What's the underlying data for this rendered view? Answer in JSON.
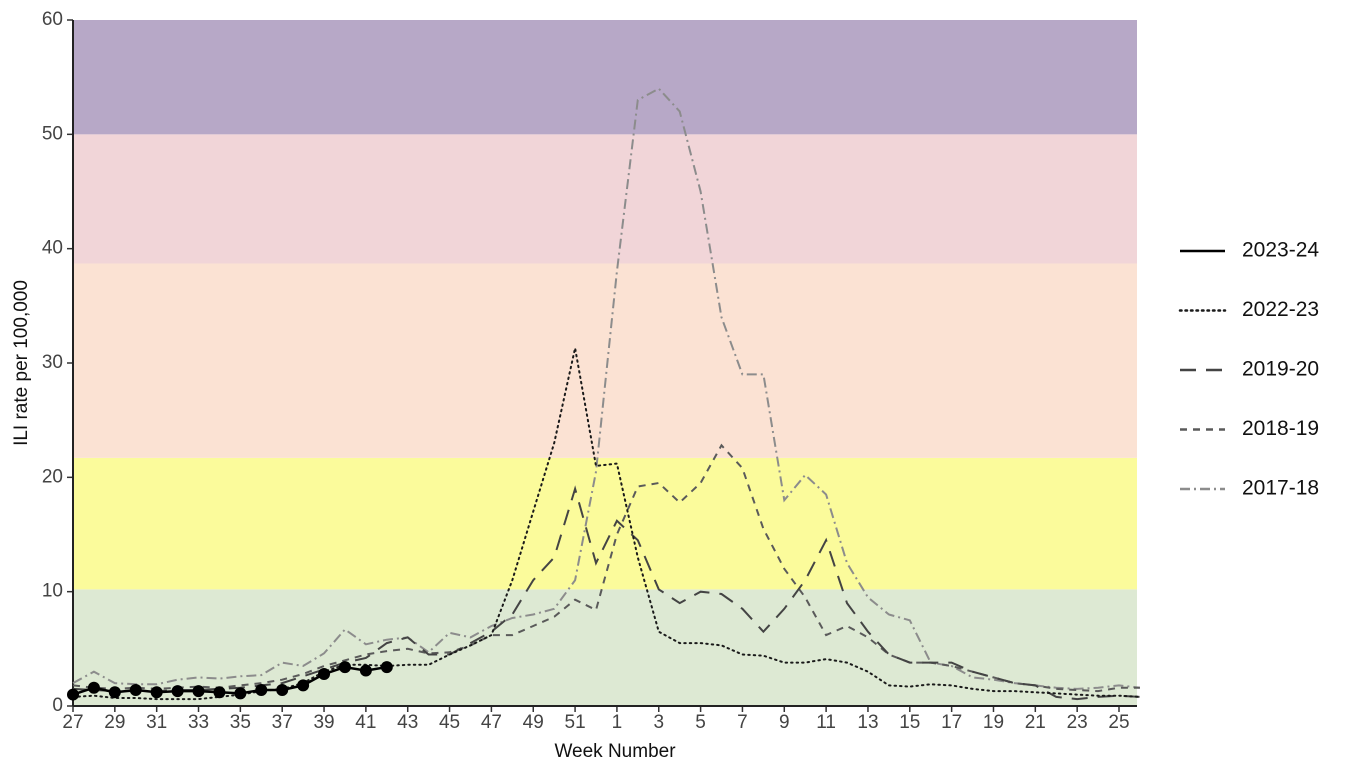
{
  "chart_data": {
    "type": "line",
    "y_label": "ILI rate per 100,000",
    "x_label": "Week Number",
    "categories": [
      "27",
      null,
      "29",
      null,
      "31",
      null,
      "33",
      null,
      "35",
      null,
      "37",
      null,
      "39",
      null,
      "41",
      null,
      "43",
      null,
      "45",
      null,
      "47",
      null,
      "49",
      null,
      "51",
      null,
      "1",
      null,
      "3",
      null,
      "5",
      null,
      "7",
      null,
      "9",
      null,
      "11",
      null,
      "13",
      null,
      "15",
      null,
      "17",
      null,
      "19",
      null,
      "21",
      null,
      "23",
      null,
      "25",
      null
    ],
    "ylim": [
      0,
      60
    ],
    "yticks": [
      0,
      10,
      20,
      30,
      40,
      50,
      60
    ],
    "bands": [
      {
        "from": 0,
        "to": 10.2,
        "color": "#dde9d3"
      },
      {
        "from": 10.2,
        "to": 21.7,
        "color": "#fbfb9b"
      },
      {
        "from": 21.7,
        "to": 38.7,
        "color": "#fbe2d3"
      },
      {
        "from": 38.7,
        "to": 50,
        "color": "#f1d5d8"
      },
      {
        "from": 50,
        "to": 60,
        "color": "#b7a8c7"
      }
    ],
    "series": [
      {
        "name": "2023-24",
        "color": "#000000",
        "dash": "solid",
        "markers": true,
        "values": [
          1.0,
          1.6,
          1.2,
          1.4,
          1.2,
          1.3,
          1.3,
          1.2,
          1.1,
          1.4,
          1.4,
          1.8,
          2.8,
          3.4,
          3.1,
          3.4,
          null,
          null,
          null,
          null,
          null,
          null,
          null,
          null,
          null,
          null,
          null,
          null,
          null,
          null,
          null,
          null,
          null,
          null,
          null,
          null,
          null,
          null,
          null,
          null,
          null,
          null,
          null,
          null,
          null,
          null,
          null,
          null,
          null,
          null,
          null,
          null
        ]
      },
      {
        "name": "2022-23",
        "color": "#1a1a1a",
        "dash": "dotted",
        "markers": false,
        "values": [
          0.8,
          0.9,
          0.7,
          0.7,
          0.6,
          0.6,
          0.6,
          0.8,
          1.0,
          1.3,
          1.5,
          2.0,
          3.0,
          3.6,
          3.6,
          3.5,
          3.6,
          3.6,
          4.5,
          5.3,
          6.2,
          11,
          17,
          23,
          31.3,
          21,
          21.2,
          13,
          6.5,
          5.5,
          5.5,
          5.3,
          4.5,
          4.4,
          3.8,
          3.8,
          4.1,
          3.8,
          3.0,
          1.8,
          1.7,
          1.9,
          1.8,
          1.5,
          1.3,
          1.3,
          1.2,
          1.1,
          1.0,
          0.9,
          0.9,
          0.8
        ]
      },
      {
        "name": "2019-20",
        "color": "#444444",
        "dash": "longdash",
        "markers": false,
        "values": [
          1.5,
          1.4,
          1.3,
          1.3,
          1.3,
          1.4,
          1.4,
          1.5,
          1.6,
          1.8,
          2.0,
          2.6,
          3.2,
          3.8,
          4.2,
          5.5,
          6.0,
          4.5,
          4.5,
          5.5,
          6.5,
          8,
          11,
          13,
          19,
          12.5,
          16.2,
          14.5,
          10.2,
          9.0,
          10,
          9.8,
          8.5,
          6.5,
          8.5,
          11,
          14.5,
          9,
          6.5,
          4.5,
          3.8,
          3.8,
          3.8,
          3.0,
          2.5,
          2.0,
          1.8,
          0.8,
          0.6,
          0.8,
          0.9,
          0.8
        ]
      },
      {
        "name": "2018-19",
        "color": "#5a5a5a",
        "dash": "dashed",
        "markers": false,
        "values": [
          1.8,
          1.6,
          1.5,
          1.6,
          1.5,
          1.6,
          1.7,
          1.6,
          1.8,
          2.0,
          2.3,
          2.8,
          3.5,
          4.0,
          4.5,
          4.8,
          5.0,
          4.6,
          4.7,
          5.3,
          6.2,
          6.2,
          7.0,
          7.8,
          9.3,
          8.4,
          15,
          19.2,
          19.5,
          17.8,
          19.5,
          22.8,
          20.8,
          15.5,
          12,
          9.5,
          6.2,
          7,
          6,
          4.5,
          3.8,
          3.8,
          3.5,
          3.0,
          2.5,
          2.0,
          1.8,
          1.5,
          1.4,
          1.3,
          1.6,
          1.6
        ]
      },
      {
        "name": "2017-18",
        "color": "#8c8c8c",
        "dash": "dashdot",
        "markers": false,
        "values": [
          2.0,
          3.0,
          2.0,
          1.9,
          1.9,
          2.3,
          2.5,
          2.4,
          2.6,
          2.7,
          3.8,
          3.5,
          4.6,
          6.7,
          5.4,
          5.8,
          6.0,
          4.7,
          6.4,
          6.0,
          7.0,
          7.7,
          8.0,
          8.5,
          11,
          20.5,
          38,
          53,
          54,
          52,
          45,
          34,
          29,
          29,
          18,
          20.2,
          18.5,
          12.5,
          9.5,
          8,
          7.5,
          3.8,
          3.5,
          2.5,
          2.3,
          2.0,
          1.8,
          1.6,
          1.5,
          1.6,
          1.8,
          1.6
        ]
      }
    ]
  }
}
